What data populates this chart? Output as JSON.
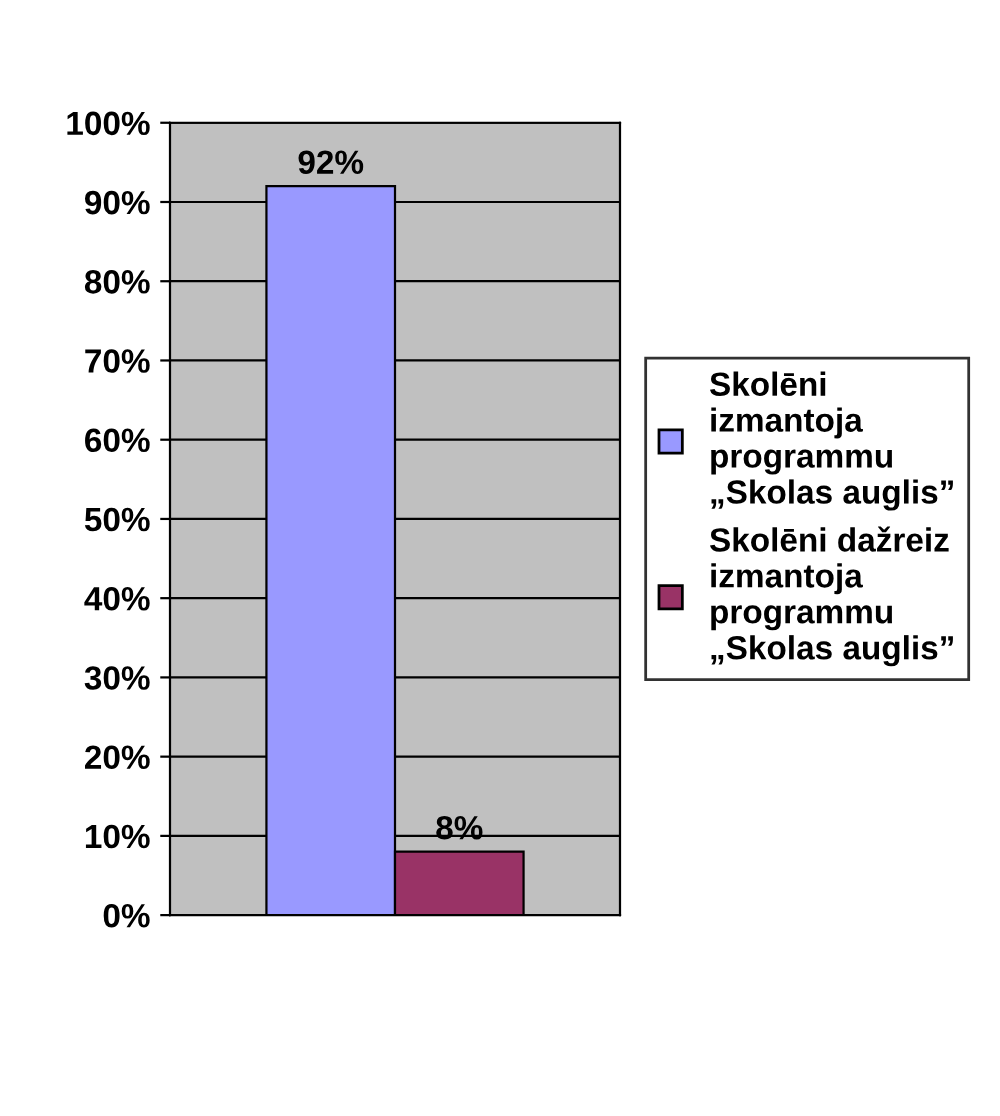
{
  "chart_data": {
    "type": "bar",
    "categories": [
      null
    ],
    "series": [
      {
        "name": "Skolēni izmantoja programmu „Skolas auglis”",
        "color": "#9999ff",
        "values": [
          92
        ],
        "value_labels": [
          "92%"
        ]
      },
      {
        "name": "Skolēni dažreiz izmantoja programmu „Skolas auglis”",
        "color": "#993366",
        "values": [
          8
        ],
        "value_labels": [
          "8%"
        ]
      }
    ],
    "ylim": [
      0,
      100
    ],
    "yticks": [
      {
        "value": 0,
        "label": "0%"
      },
      {
        "value": 10,
        "label": "10%"
      },
      {
        "value": 20,
        "label": "20%"
      },
      {
        "value": 30,
        "label": "30%"
      },
      {
        "value": 40,
        "label": "40%"
      },
      {
        "value": 50,
        "label": "50%"
      },
      {
        "value": 60,
        "label": "60%"
      },
      {
        "value": 70,
        "label": "70%"
      },
      {
        "value": 80,
        "label": "80%"
      },
      {
        "value": 90,
        "label": "90%"
      },
      {
        "value": 100,
        "label": "100%"
      }
    ],
    "grid": "y",
    "legend": "right"
  }
}
